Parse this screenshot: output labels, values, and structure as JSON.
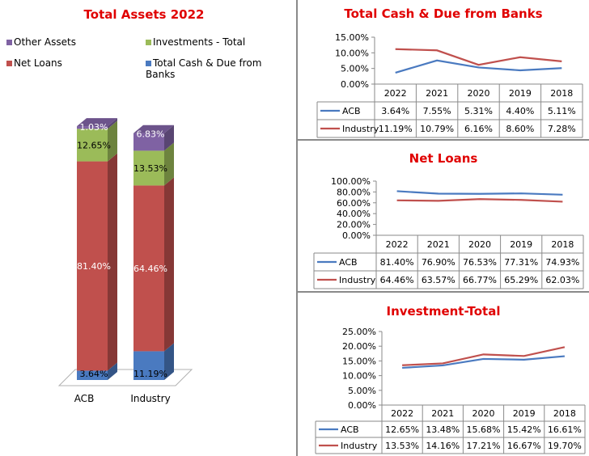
{
  "chart_data": [
    {
      "type": "bar",
      "stacked": true,
      "title": "Total Assets 2022",
      "categories": [
        "ACB",
        "Industry"
      ],
      "series": [
        {
          "name": "Total Cash & Due from Banks",
          "color": "#4a7ac0",
          "values": [
            3.64,
            11.19
          ],
          "labels": [
            "3.64%",
            "11.19%"
          ]
        },
        {
          "name": "Net Loans",
          "color": "#c0504d",
          "values": [
            81.4,
            64.46
          ],
          "labels": [
            "81.40%",
            "64.46%"
          ]
        },
        {
          "name": "Investments - Total",
          "color": "#9bbb59",
          "values": [
            12.65,
            13.53
          ],
          "labels": [
            "12.65%",
            "13.53%"
          ]
        },
        {
          "name": "Other Assets",
          "color": "#7f62a3",
          "values": [
            1.03,
            6.83
          ],
          "labels": [
            "1.03%",
            "6.83%"
          ]
        }
      ],
      "legend": [
        {
          "label": "Other Assets",
          "color": "#7f62a3"
        },
        {
          "label": "Investments - Total",
          "color": "#9bbb59"
        },
        {
          "label": "Net Loans",
          "color": "#c0504d"
        },
        {
          "label": "Total Cash & Due from Banks",
          "color": "#4a7ac0"
        }
      ],
      "legend_position": "top",
      "ylim": [
        0,
        100
      ]
    },
    {
      "type": "line",
      "title": "Total Cash & Due from Banks",
      "categories": [
        "2022",
        "2021",
        "2020",
        "2019",
        "2018"
      ],
      "yticks": [
        "15.00%",
        "10.00%",
        "5.00%",
        "0.00%"
      ],
      "ylim": [
        0,
        15
      ],
      "series": [
        {
          "name": "ACB",
          "color": "#4a7ac0",
          "values": [
            3.64,
            7.55,
            5.31,
            4.4,
            5.11
          ],
          "labels": [
            "3.64%",
            "7.55%",
            "5.31%",
            "4.40%",
            "5.11%"
          ]
        },
        {
          "name": "Industry",
          "color": "#c0504d",
          "values": [
            11.19,
            10.79,
            6.16,
            8.6,
            7.28
          ],
          "labels": [
            "11.19%",
            "10.79%",
            "6.16%",
            "8.60%",
            "7.28%"
          ]
        }
      ]
    },
    {
      "type": "line",
      "title": "Net Loans",
      "categories": [
        "2022",
        "2021",
        "2020",
        "2019",
        "2018"
      ],
      "yticks": [
        "100.00%",
        "80.00%",
        "60.00%",
        "40.00%",
        "20.00%",
        "0.00%"
      ],
      "ylim": [
        0,
        100
      ],
      "series": [
        {
          "name": "ACB",
          "color": "#4a7ac0",
          "values": [
            81.4,
            76.9,
            76.53,
            77.31,
            74.93
          ],
          "labels": [
            "81.40%",
            "76.90%",
            "76.53%",
            "77.31%",
            "74.93%"
          ]
        },
        {
          "name": "Industry",
          "color": "#c0504d",
          "values": [
            64.46,
            63.57,
            66.77,
            65.29,
            62.03
          ],
          "labels": [
            "64.46%",
            "63.57%",
            "66.77%",
            "65.29%",
            "62.03%"
          ]
        }
      ]
    },
    {
      "type": "line",
      "title": "Investment-Total",
      "categories": [
        "2022",
        "2021",
        "2020",
        "2019",
        "2018"
      ],
      "yticks": [
        "25.00%",
        "20.00%",
        "15.00%",
        "10.00%",
        "5.00%",
        "0.00%"
      ],
      "ylim": [
        0,
        25
      ],
      "series": [
        {
          "name": "ACB",
          "color": "#4a7ac0",
          "values": [
            12.65,
            13.48,
            15.68,
            15.42,
            16.61
          ],
          "labels": [
            "12.65%",
            "13.48%",
            "15.68%",
            "15.42%",
            "16.61%"
          ]
        },
        {
          "name": "Industry",
          "color": "#c0504d",
          "values": [
            13.53,
            14.16,
            17.21,
            16.67,
            19.7
          ],
          "labels": [
            "13.53%",
            "14.16%",
            "17.21%",
            "16.67%",
            "19.70%"
          ]
        }
      ]
    }
  ]
}
